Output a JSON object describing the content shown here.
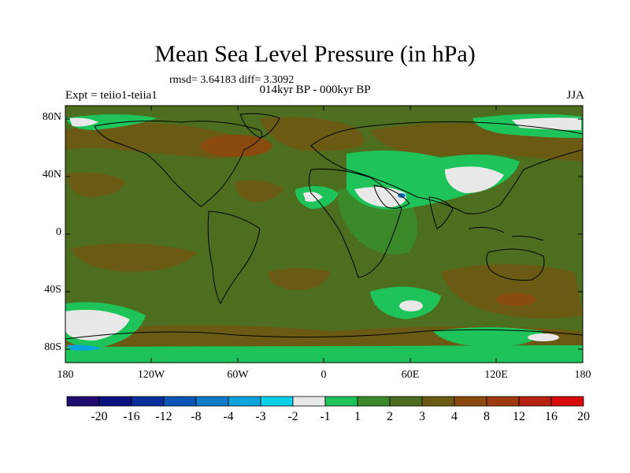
{
  "title": "Mean Sea Level Pressure (in hPa)",
  "stats_text": "rmsd= 3.64183 diff= 3.3092",
  "period": "014kyr BP - 000kyr BP",
  "experiment": "Expt = teiio1-teiia1",
  "season": "JJA",
  "lat_ticks": [
    "80N",
    "40N",
    "0",
    "40S",
    "80S"
  ],
  "lon_ticks": [
    "180",
    "120W",
    "60W",
    "0",
    "60E",
    "120E",
    "180"
  ],
  "colorbar": {
    "colors": [
      "#1f0a6e",
      "#0b117f",
      "#0a2e99",
      "#0a55b5",
      "#0a7cc8",
      "#0aa3db",
      "#0ad0ea",
      "#e8e8e8",
      "#1ec45a",
      "#3a8a2a",
      "#4d6e1e",
      "#6b5a14",
      "#8a4a0e",
      "#9e3a10",
      "#b82010",
      "#d80a0a"
    ],
    "labels": [
      "-20",
      "-16",
      "-12",
      "-8",
      "-4",
      "-3",
      "-2",
      "-1",
      "1",
      "2",
      "3",
      "4",
      "8",
      "12",
      "16",
      "20"
    ]
  }
}
